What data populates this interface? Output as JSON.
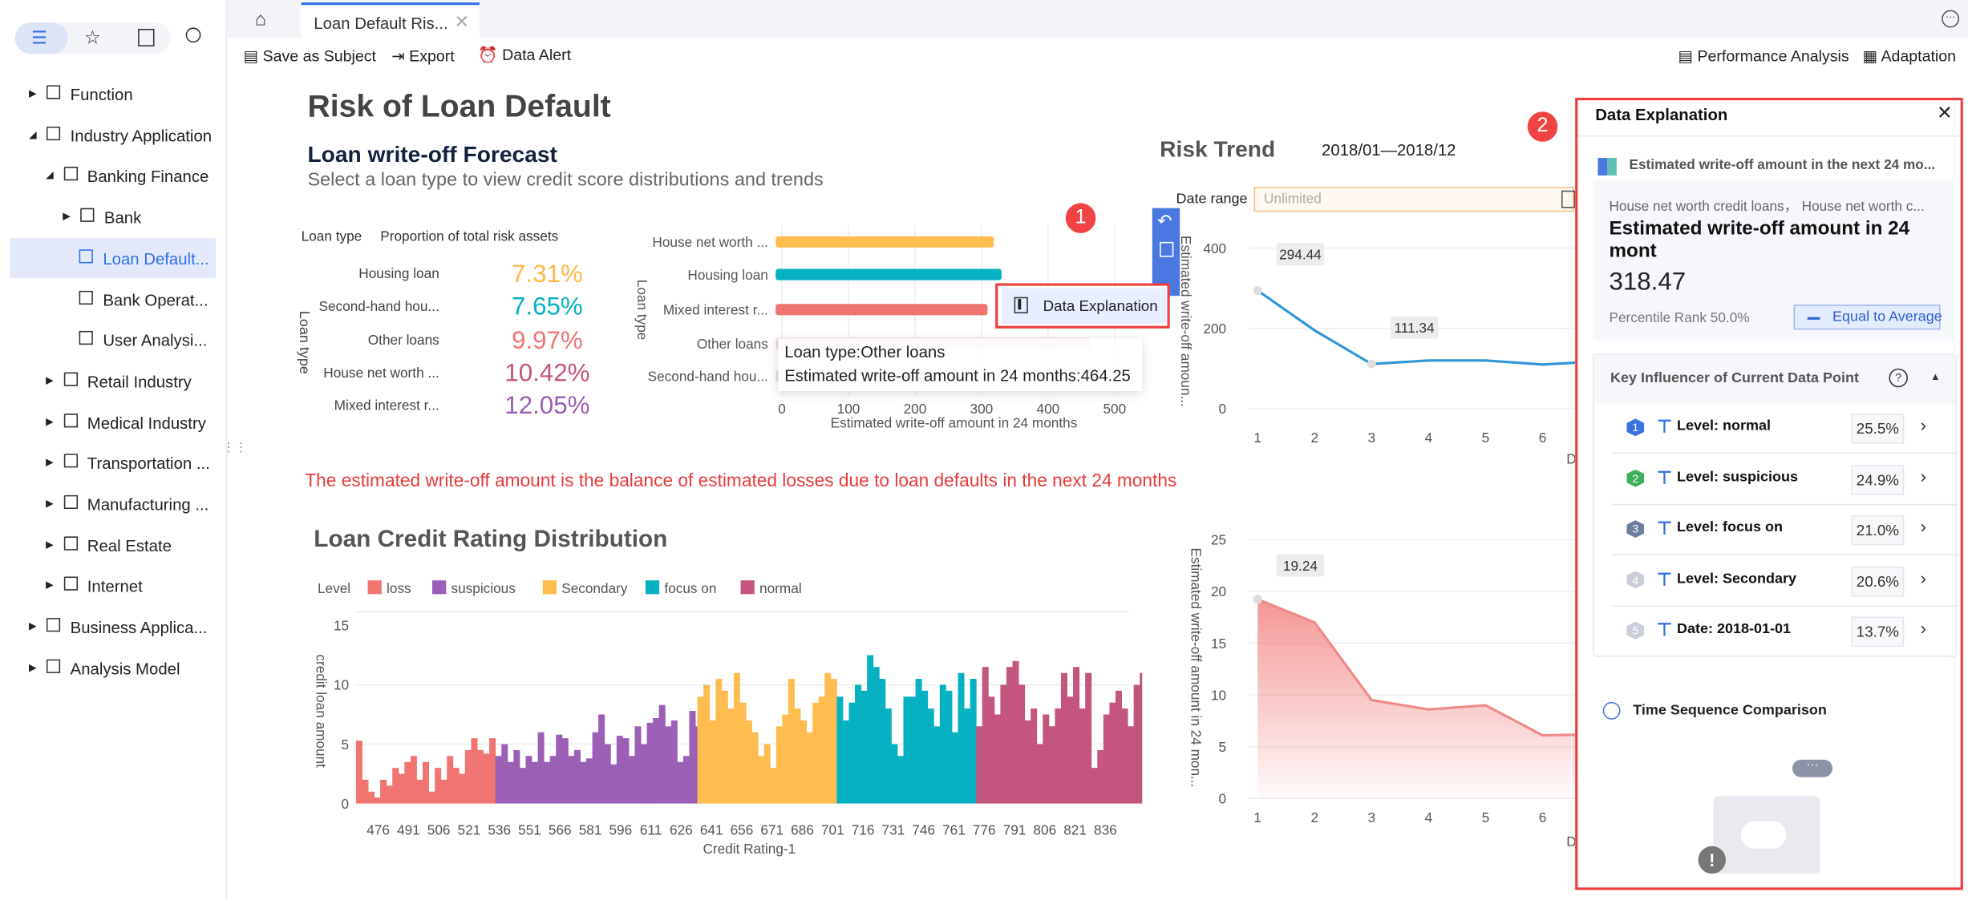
{
  "sidebar": {
    "top_icons": [
      "list-icon",
      "star-icon",
      "export-box-icon",
      "search-icon"
    ],
    "tree": [
      {
        "label": "Function",
        "level": 0,
        "type": "folder",
        "expanded": false
      },
      {
        "label": "Industry Application",
        "level": 0,
        "type": "folder",
        "expanded": true
      },
      {
        "label": "Banking Finance",
        "level": 1,
        "type": "folder",
        "expanded": true
      },
      {
        "label": "Bank",
        "level": 2,
        "type": "folder",
        "expanded": false
      },
      {
        "label": "Loan Default...",
        "level": 3,
        "type": "doc",
        "selected": true
      },
      {
        "label": "Bank Operat...",
        "level": 3,
        "type": "doc"
      },
      {
        "label": "User Analysi...",
        "level": 3,
        "type": "doc"
      },
      {
        "label": "Retail Industry",
        "level": 1,
        "type": "folder",
        "expanded": false
      },
      {
        "label": "Medical Industry",
        "level": 1,
        "type": "folder",
        "expanded": false
      },
      {
        "label": "Transportation ...",
        "level": 1,
        "type": "folder",
        "expanded": false
      },
      {
        "label": "Manufacturing ...",
        "level": 1,
        "type": "folder",
        "expanded": false
      },
      {
        "label": "Real Estate",
        "level": 1,
        "type": "folder",
        "expanded": false
      },
      {
        "label": "Internet",
        "level": 1,
        "type": "folder",
        "expanded": false
      },
      {
        "label": "Business Applica...",
        "level": 0,
        "type": "folder",
        "expanded": false
      },
      {
        "label": "Analysis Model",
        "level": 0,
        "type": "folder",
        "expanded": false
      }
    ]
  },
  "tabs": {
    "active": "Loan Default Ris..."
  },
  "toolbar": {
    "save_as_subject": "Save as Subject",
    "export": "Export",
    "data_alert": "Data Alert",
    "performance_analysis": "Performance Analysis",
    "adaptation": "Adaptation"
  },
  "page": {
    "title": "Risk of Loan Default",
    "forecast_title": "Loan write-off Forecast",
    "forecast_subtitle": "Select a loan type to view credit score distributions and trends",
    "note": "The estimated write-off amount is the balance of estimated losses due to loan defaults in the next 24 months",
    "risk_trend_title": "Risk Trend",
    "risk_trend_period": "2018/01—2018/12",
    "date_range_label": "Date range",
    "date_range_placeholder": "Unlimited",
    "distribution_title": "Loan Credit Rating Distribution"
  },
  "proportion_table": {
    "headers": [
      "Loan type",
      "Proportion of total risk assets"
    ],
    "axis_label": "Loan type",
    "rows": [
      {
        "label": "Housing loan",
        "value": "7.31%",
        "color": "#ffb94a"
      },
      {
        "label": "Second-hand hou...",
        "value": "7.65%",
        "color": "#06b2c2"
      },
      {
        "label": "Other loans",
        "value": "9.97%",
        "color": "#f07472"
      },
      {
        "label": "House net worth ...",
        "value": "10.42%",
        "color": "#c4557f"
      },
      {
        "label": "Mixed interest r...",
        "value": "12.05%",
        "color": "#9b5fb5"
      }
    ]
  },
  "badges": {
    "one": "1",
    "two": "2"
  },
  "context_menu": {
    "data_explanation": "Data Explanation"
  },
  "tooltip": {
    "line1": "Loan type:Other loans",
    "line2": "Estimated write-off amount in 24 months:464.25"
  },
  "chart_data": [
    {
      "type": "bar",
      "orientation": "horizontal",
      "categories": [
        "House net worth ...",
        "Housing loan",
        "Mixed interest r...",
        "Other loans",
        "Second-hand hou..."
      ],
      "values": [
        318.47,
        330,
        309,
        464.25,
        270
      ],
      "colors": [
        "#ffbd4f",
        "#06b2c2",
        "#f07472",
        "#f3d9e2",
        "#e6dcef"
      ],
      "xlabel": "Estimated write-off amount in 24 months",
      "ylabel": "Loan type",
      "xlim": [
        0,
        500
      ],
      "xticks": [
        "0",
        "100",
        "200",
        "300",
        "400",
        "500"
      ],
      "grid": true
    },
    {
      "type": "line",
      "x": [
        1,
        2,
        3,
        4,
        5,
        6,
        7
      ],
      "values": [
        294.44,
        195,
        111.34,
        120,
        120,
        110,
        118
      ],
      "color": "#2d95d8",
      "ylabel": "Estimated write-off amoun...",
      "xlabel": "D",
      "ylim": [
        0,
        400
      ],
      "yticks": [
        "0",
        "200",
        "400"
      ],
      "xticks": [
        "1",
        "2",
        "3",
        "4",
        "5",
        "6"
      ],
      "data_labels": [
        {
          "x": 1,
          "text": "294.44"
        },
        {
          "x": 3,
          "text": "111.34"
        }
      ]
    },
    {
      "type": "area",
      "x": [
        1,
        2,
        3,
        4,
        5,
        6,
        7
      ],
      "values": [
        19.24,
        17,
        9.5,
        8.6,
        9,
        6.1,
        6.2
      ],
      "color": "#f07472",
      "ylabel": "Estimated write-off amount in 24 mon...",
      "xlabel": "D",
      "ylim": [
        0,
        25
      ],
      "yticks": [
        "0",
        "5",
        "10",
        "15",
        "20",
        "25"
      ],
      "xticks": [
        "1",
        "2",
        "3",
        "4",
        "5",
        "6"
      ],
      "data_labels": [
        {
          "x": 1,
          "text": "19.24"
        }
      ]
    },
    {
      "type": "bar",
      "orientation": "vertical",
      "legend_title": "Level",
      "legend_position": "top-left",
      "xlabel": "Credit Rating-1",
      "ylabel": "credit loan amount",
      "ylim": [
        0,
        15
      ],
      "yticks": [
        "0",
        "5",
        "10",
        "15"
      ],
      "xlim": [
        464,
        848
      ],
      "xticks": [
        "476",
        "491",
        "506",
        "521",
        "536",
        "551",
        "566",
        "581",
        "596",
        "611",
        "626",
        "641",
        "656",
        "671",
        "686",
        "701",
        "716",
        "731",
        "746",
        "761",
        "776",
        "791",
        "806",
        "821",
        "836"
      ],
      "series": [
        {
          "name": "loss",
          "color": "#f07472",
          "x_start": 465,
          "step": 3,
          "values": [
            5.3,
            2,
            1,
            0.5,
            2,
            1.5,
            3,
            2.5,
            3.5,
            4,
            2,
            3.5,
            1,
            3,
            2,
            4,
            3,
            2.5,
            4.5,
            5.5,
            4.5,
            4.2,
            5.5
          ]
        },
        {
          "name": "suspicious",
          "color": "#9b5fb5",
          "x_start": 534,
          "step": 3,
          "values": [
            4,
            5,
            3.5,
            4.5,
            3,
            4,
            3.5,
            6,
            3.5,
            4,
            5.8,
            5.5,
            4,
            4.5,
            3.5,
            3.8,
            6,
            7.5,
            5,
            3.3,
            5.7,
            5.5,
            4,
            6.5,
            5,
            6.8,
            7.2,
            8.3,
            6.5,
            7,
            3.5,
            4,
            7.8,
            6.5
          ]
        },
        {
          "name": "Secondary",
          "color": "#ffbd4f",
          "x_start": 634,
          "step": 3,
          "values": [
            9,
            10,
            7,
            10.5,
            9.5,
            8,
            11,
            8.5,
            7,
            6,
            4,
            5,
            3,
            6.5,
            7.5,
            10.5,
            8,
            7,
            6,
            8.5,
            9,
            11,
            10.5
          ]
        },
        {
          "name": "focus on",
          "color": "#06b2c2",
          "x_start": 703,
          "step": 3,
          "values": [
            9,
            7,
            8.5,
            10,
            9.5,
            12.5,
            11.5,
            10.5,
            8,
            5,
            4,
            9,
            9,
            10.5,
            9.5,
            8,
            6.5,
            10,
            9.5,
            6,
            11,
            8,
            10.5
          ]
        },
        {
          "name": "normal",
          "color": "#c4557f",
          "x_start": 772,
          "step": 3,
          "values": [
            6.5,
            11.5,
            9,
            7.5,
            10,
            11.5,
            12,
            10,
            7,
            8,
            5,
            7.5,
            6.5,
            8,
            11,
            9,
            11.5,
            8,
            11,
            3,
            4.5,
            7.5,
            8.5,
            9.5,
            8,
            6.5,
            10,
            11
          ]
        }
      ]
    }
  ],
  "side_toolbar": {
    "icons": [
      "undo-icon",
      "save-icon",
      "circle-icon"
    ]
  },
  "data_explanation": {
    "title": "Data Explanation",
    "metric": "Estimated write-off amount in the next 24 mo...",
    "dimensions": "House net worth credit loans， House net worth c...",
    "value_label": "Estimated write-off amount in 24 mont",
    "value": "318.47",
    "percentile": "Percentile Rank 50.0%",
    "comparison": "Equal to Average",
    "key_influencer_title": "Key Influencer of Current Data Point",
    "influencers": [
      {
        "rank": "1",
        "label": "Level: normal",
        "value": "25.5%",
        "color": "#3a72e0"
      },
      {
        "rank": "2",
        "label": "Level: suspicious",
        "value": "24.9%",
        "color": "#3fae5a"
      },
      {
        "rank": "3",
        "label": "Level: focus on",
        "value": "21.0%",
        "color": "#6c7f9e"
      },
      {
        "rank": "4",
        "label": "Level: Secondary",
        "value": "20.6%",
        "color": "#c9ced8"
      },
      {
        "rank": "5",
        "label": "Date: 2018-01-01",
        "value": "13.7%",
        "color": "#c9ced8"
      }
    ],
    "time_sequence_title": "Time Sequence Comparison"
  }
}
